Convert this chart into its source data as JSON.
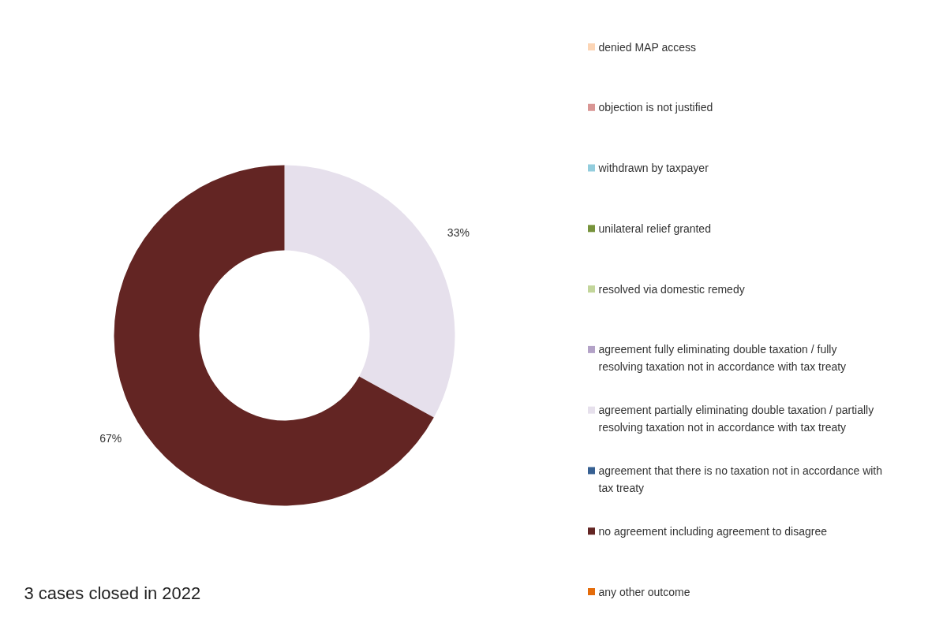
{
  "chart_data": {
    "type": "donut",
    "annotations": [
      "3 cases closed in 2022"
    ],
    "categories": [
      "denied MAP access",
      "objection is not justified",
      "withdrawn by taxpayer",
      "unilateral relief granted",
      "resolved via domestic remedy",
      "agreement fully eliminating double taxation / fully resolving taxation not in accordance with tax treaty",
      "agreement partially eliminating double taxation / partially resolving taxation not in accordance with tax treaty",
      "agreement that there is no taxation not in accordance with tax treaty",
      "no agreement including agreement to disagree",
      "any other outcome"
    ],
    "values": [
      0,
      0,
      0,
      0,
      0,
      0,
      33,
      0,
      67,
      0
    ],
    "value_labels": [
      null,
      null,
      null,
      null,
      null,
      null,
      "33%",
      null,
      "67%",
      null
    ],
    "colors": [
      "#fcd5b5",
      "#d99694",
      "#93cddd",
      "#77933c",
      "#c3d69b",
      "#b3a2c7",
      "#e6e0ec",
      "#376092",
      "#632523",
      "#e46c0a"
    ],
    "legend": "right"
  }
}
